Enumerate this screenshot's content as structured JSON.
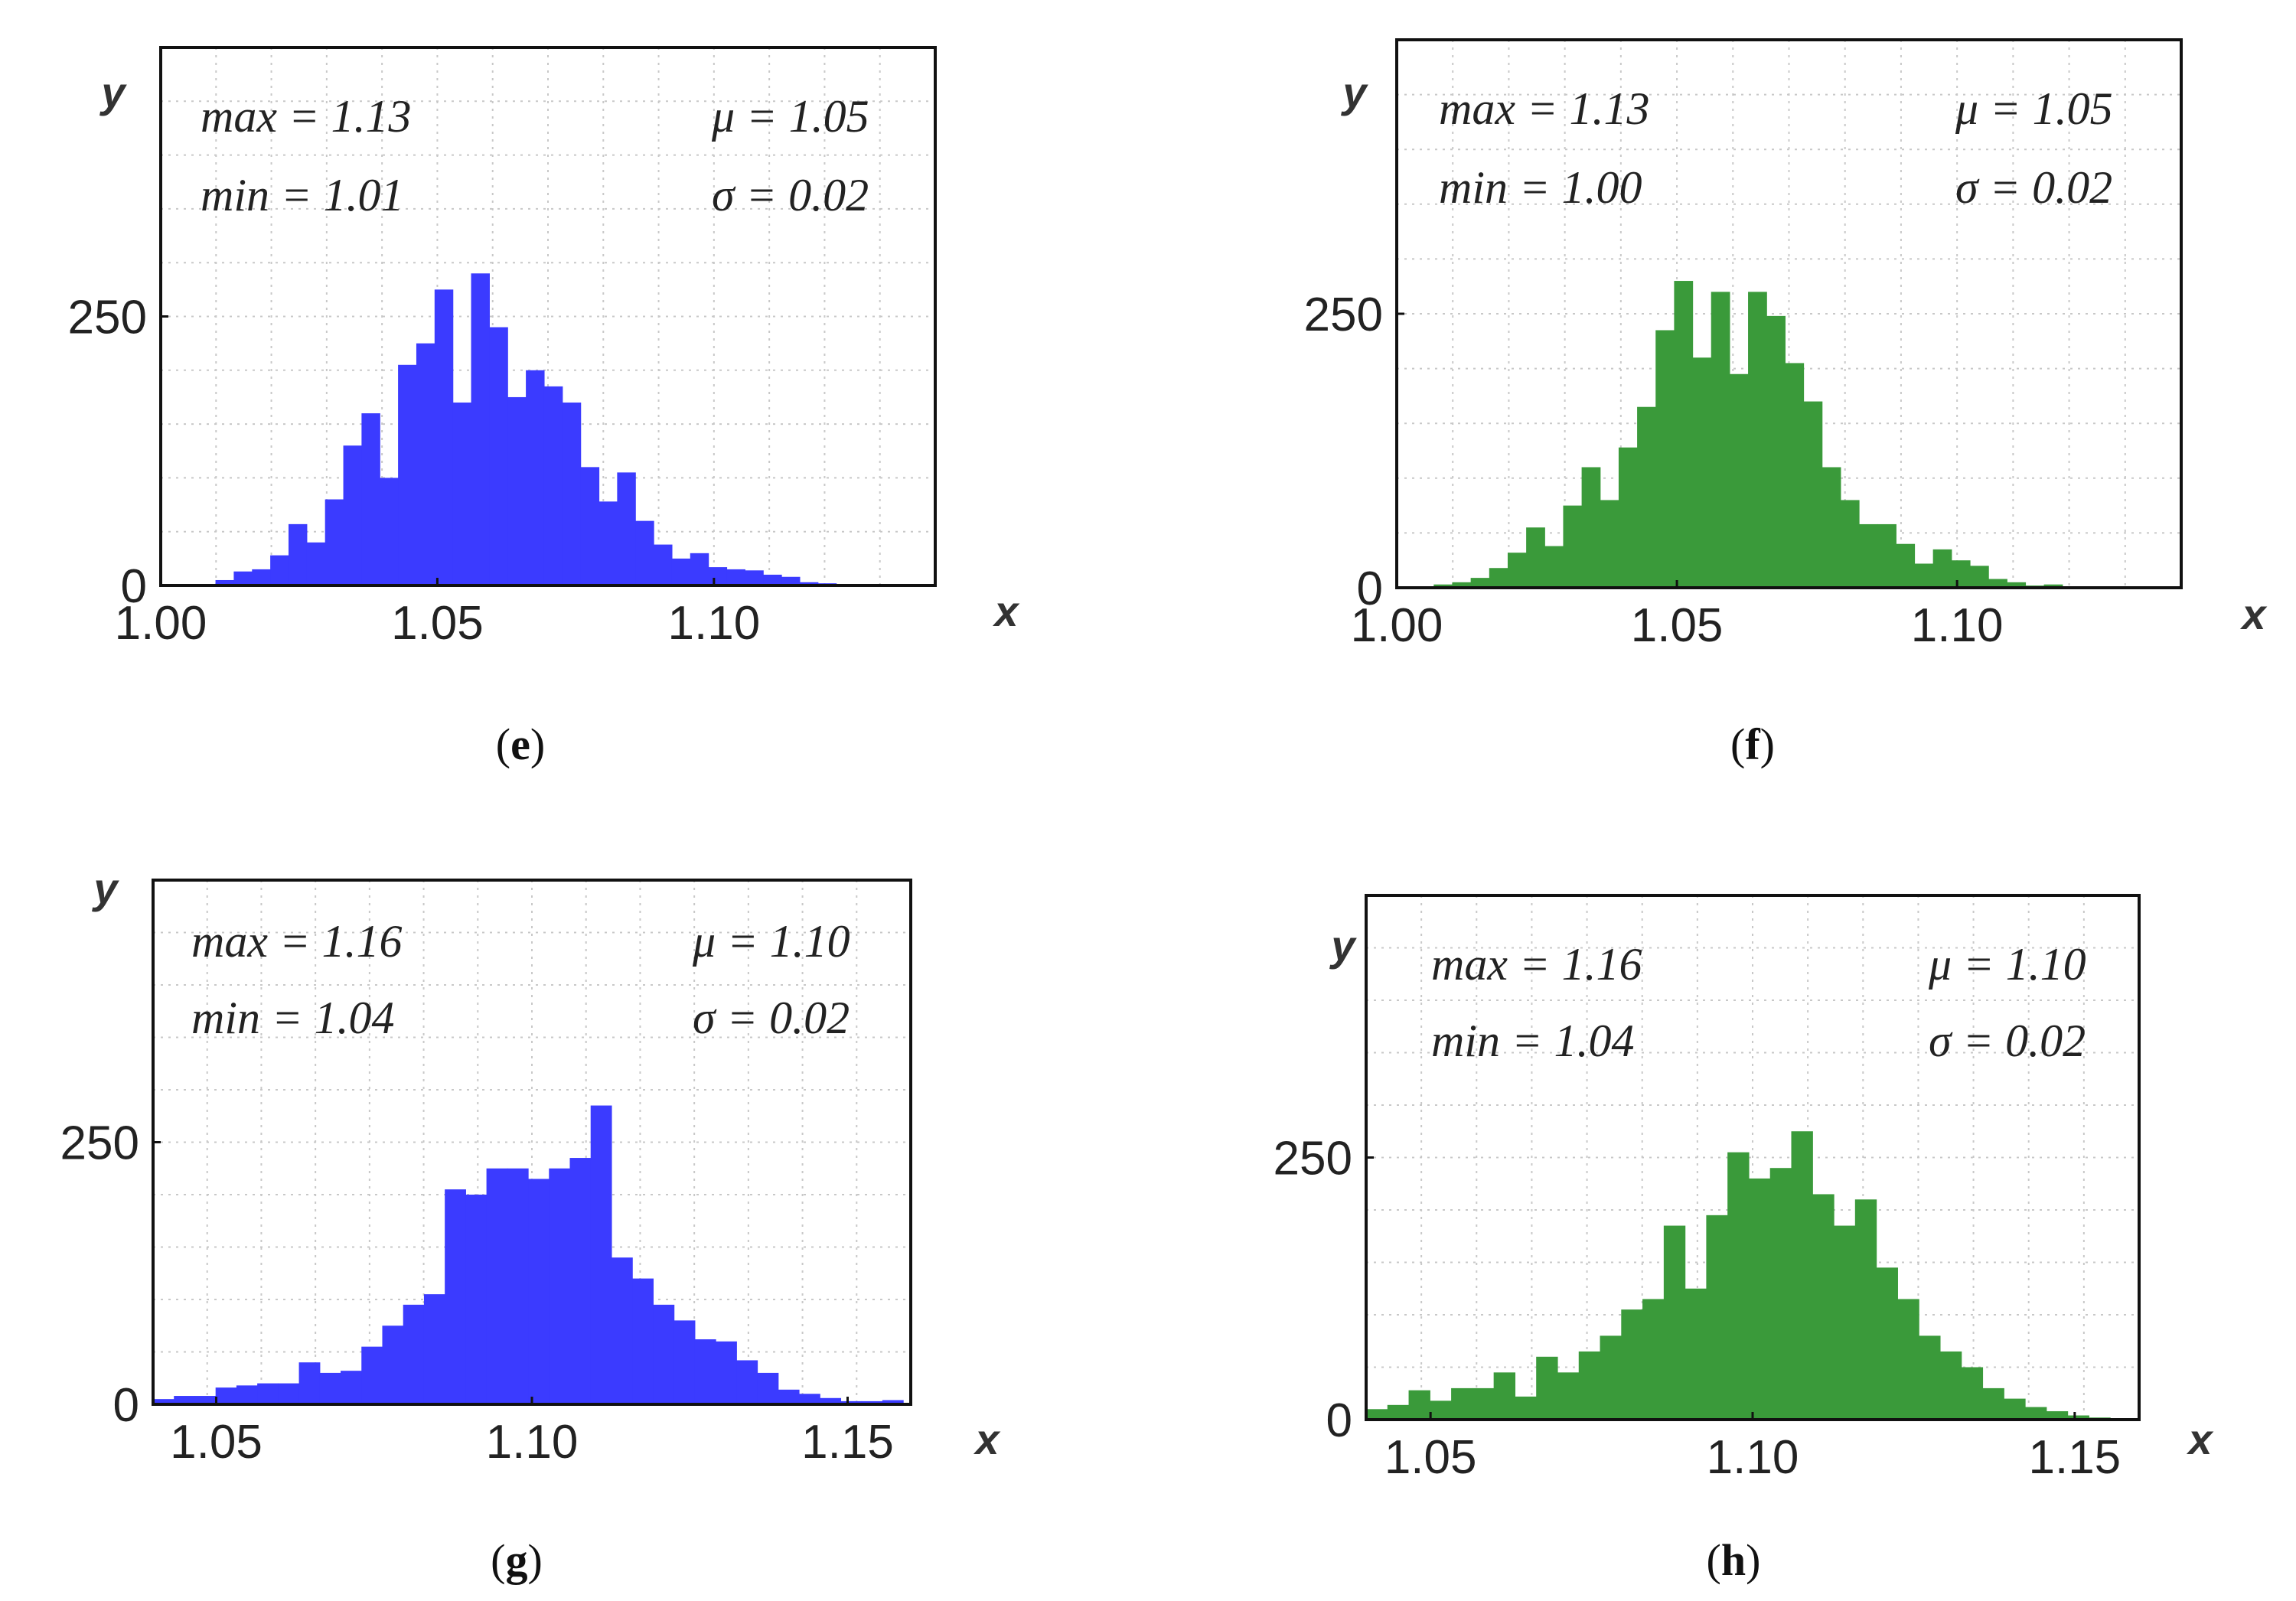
{
  "colors": {
    "blue": "#3b3bff",
    "green": "#3a9a3a"
  },
  "chart_data": [
    {
      "type": "bar",
      "panel": "e",
      "caption_letter": "e",
      "color_key": "blue",
      "xlabel": "x",
      "ylabel": "y",
      "xlim": [
        1.0,
        1.14
      ],
      "ylim": [
        0,
        500
      ],
      "xticks": [
        "1.00",
        "1.05",
        "1.10"
      ],
      "yticks": [
        "0",
        "250"
      ],
      "stats": {
        "max": "max = 1.13",
        "min": "min = 1.01",
        "mu": "μ = 1.05",
        "sigma": "σ = 0.02"
      },
      "bin_start": 1.0,
      "bin_width": 0.0033,
      "values": [
        0,
        0,
        0,
        5,
        13,
        15,
        28,
        57,
        40,
        80,
        130,
        160,
        100,
        205,
        225,
        275,
        170,
        290,
        240,
        175,
        200,
        185,
        170,
        110,
        78,
        105,
        60,
        38,
        25,
        30,
        17,
        15,
        14,
        10,
        8,
        3,
        2,
        1,
        1,
        1,
        0,
        0
      ]
    },
    {
      "type": "bar",
      "panel": "f",
      "caption_letter": "f",
      "color_key": "green",
      "xlabel": "x",
      "ylabel": "y",
      "xlim": [
        1.0,
        1.14
      ],
      "ylim": [
        0,
        500
      ],
      "xticks": [
        "1.00",
        "1.05",
        "1.10"
      ],
      "yticks": [
        "0",
        "250"
      ],
      "stats": {
        "max": "max = 1.13",
        "min": "min = 1.00",
        "mu": "μ = 1.05",
        "sigma": "σ = 0.02"
      },
      "bin_start": 1.0,
      "bin_width": 0.0033,
      "values": [
        0,
        0,
        3,
        5,
        9,
        18,
        32,
        55,
        38,
        75,
        110,
        80,
        128,
        165,
        235,
        280,
        210,
        270,
        195,
        270,
        248,
        205,
        170,
        110,
        80,
        58,
        58,
        40,
        22,
        35,
        25,
        20,
        8,
        5,
        2,
        3,
        1,
        1,
        0,
        0,
        0,
        0
      ]
    },
    {
      "type": "bar",
      "panel": "g",
      "caption_letter": "g",
      "color_key": "blue",
      "xlabel": "x",
      "ylabel": "y",
      "xlim": [
        1.04,
        1.16
      ],
      "ylim": [
        0,
        500
      ],
      "xticks": [
        "1.05",
        "1.10",
        "1.15"
      ],
      "yticks": [
        "0",
        "250"
      ],
      "stats": {
        "max": "max = 1.16",
        "min": "min = 1.04",
        "mu": "μ = 1.10",
        "sigma": "σ = 0.02"
      },
      "bin_start": 1.04,
      "bin_width": 0.0033,
      "values": [
        5,
        8,
        8,
        16,
        18,
        20,
        20,
        40,
        30,
        32,
        55,
        75,
        95,
        105,
        205,
        200,
        225,
        225,
        215,
        225,
        235,
        285,
        140,
        120,
        95,
        80,
        62,
        60,
        42,
        30,
        14,
        10,
        6,
        3,
        3,
        4
      ]
    },
    {
      "type": "bar",
      "panel": "h",
      "caption_letter": "h",
      "color_key": "green",
      "xlabel": "x",
      "ylabel": "y",
      "xlim": [
        1.04,
        1.16
      ],
      "ylim": [
        0,
        500
      ],
      "xticks": [
        "1.05",
        "1.10",
        "1.15"
      ],
      "yticks": [
        "0",
        "250"
      ],
      "stats": {
        "max": "max = 1.16",
        "min": "min = 1.04",
        "mu": "μ = 1.10",
        "sigma": "σ = 0.02"
      },
      "bin_start": 1.04,
      "bin_width": 0.0033,
      "values": [
        10,
        14,
        28,
        18,
        30,
        30,
        45,
        22,
        60,
        45,
        65,
        80,
        105,
        115,
        185,
        125,
        195,
        255,
        230,
        240,
        275,
        215,
        185,
        210,
        145,
        115,
        80,
        65,
        50,
        30,
        20,
        12,
        8,
        4,
        2,
        1
      ]
    }
  ]
}
